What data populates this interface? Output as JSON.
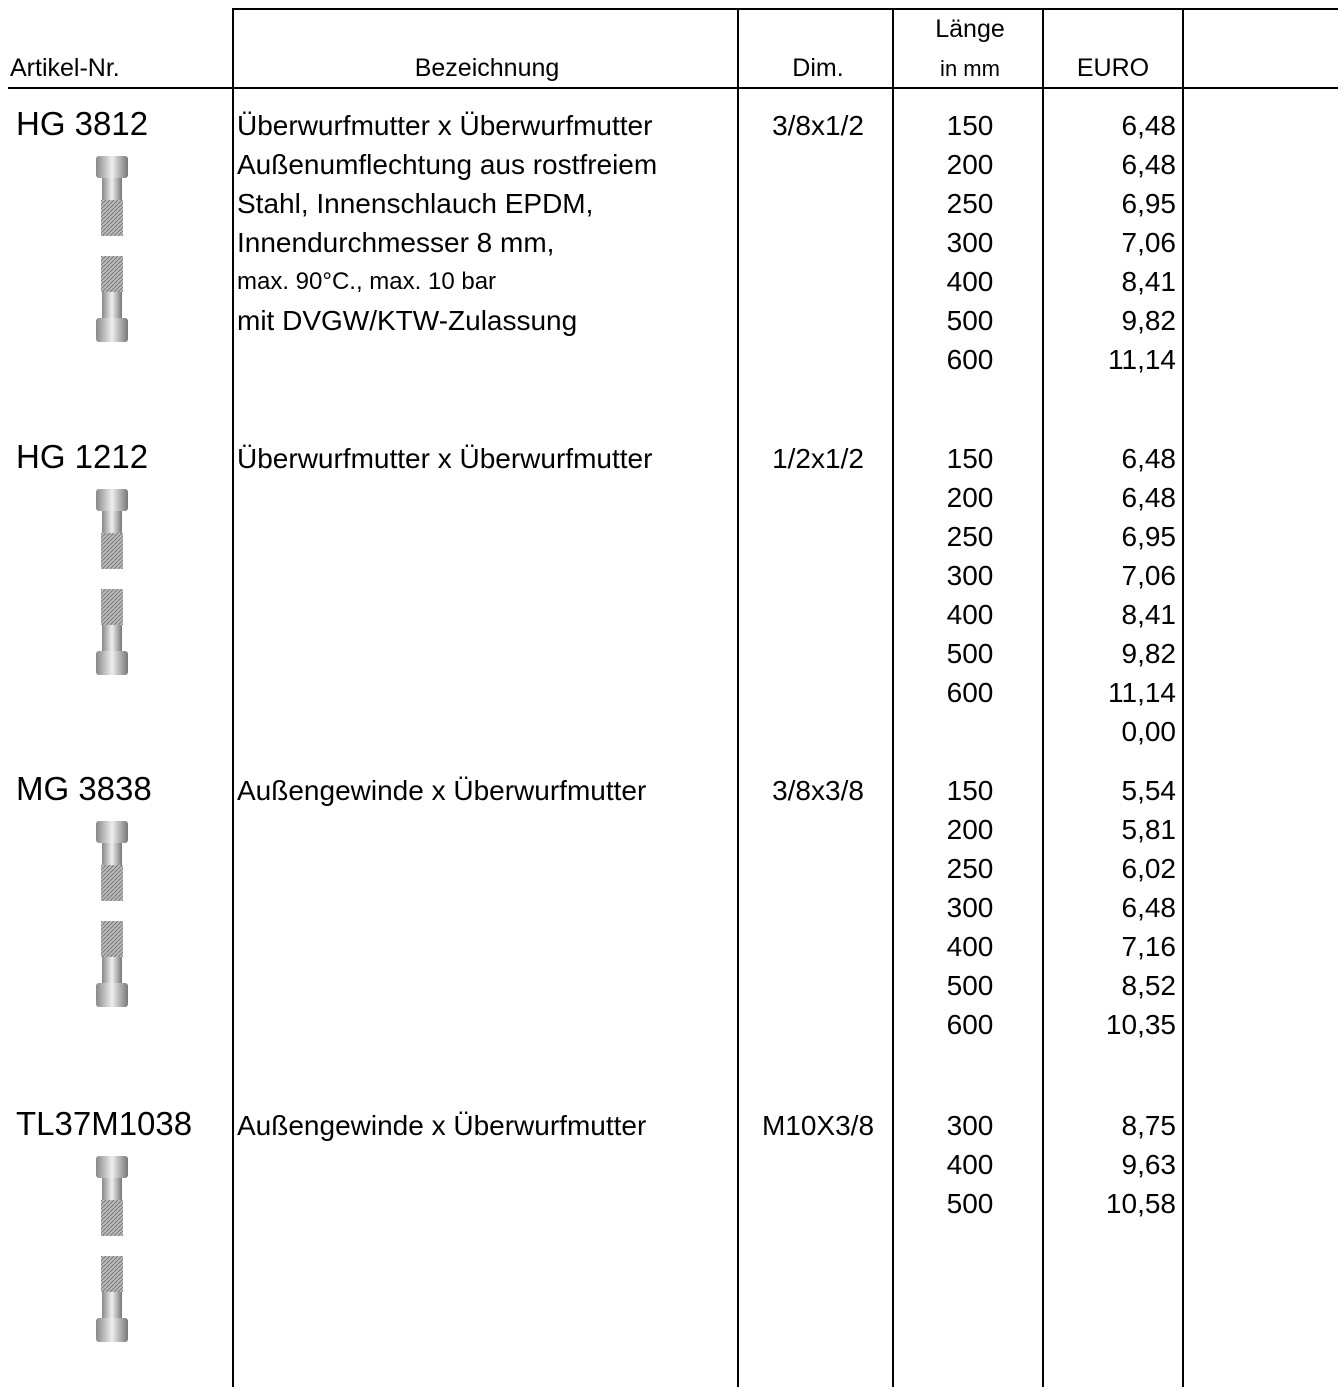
{
  "header": {
    "article": "Artikel-Nr.",
    "designation": "Bezeichnung",
    "dim": "Dim.",
    "length": [
      "Länge",
      "in mm"
    ],
    "price": "EURO"
  },
  "products": [
    {
      "id": "HG 3812",
      "description": [
        "Überwurfmutter x Überwurfmutter",
        "Außenumflechtung aus rostfreiem",
        "Stahl, Innenschlauch EPDM,",
        "Innendurchmesser 8 mm,",
        "max. 90°C., max. 10 bar",
        "mit DVGW/KTW-Zulassung"
      ],
      "dim": "3/8x1/2",
      "rows": [
        {
          "length": 150,
          "price": "6,48"
        },
        {
          "length": 200,
          "price": "6,48"
        },
        {
          "length": 250,
          "price": "6,95"
        },
        {
          "length": 300,
          "price": "7,06"
        },
        {
          "length": 400,
          "price": "8,41"
        },
        {
          "length": 500,
          "price": "9,82"
        },
        {
          "length": 600,
          "price": "11,14"
        }
      ]
    },
    {
      "id": "HG 1212",
      "description": [
        "Überwurfmutter x Überwurfmutter"
      ],
      "dim": "1/2x1/2",
      "rows": [
        {
          "length": 150,
          "price": "6,48"
        },
        {
          "length": 200,
          "price": "6,48"
        },
        {
          "length": 250,
          "price": "6,95"
        },
        {
          "length": 300,
          "price": "7,06"
        },
        {
          "length": 400,
          "price": "8,41"
        },
        {
          "length": 500,
          "price": "9,82"
        },
        {
          "length": 600,
          "price": "11,14"
        },
        {
          "price": "0,00"
        }
      ]
    },
    {
      "id": "MG 3838",
      "description": [
        "Außengewinde x Überwurfmutter"
      ],
      "dim": "3/8x3/8",
      "rows": [
        {
          "length": 150,
          "price": "5,54"
        },
        {
          "length": 200,
          "price": "5,81"
        },
        {
          "length": 250,
          "price": "6,02"
        },
        {
          "length": 300,
          "price": "6,48"
        },
        {
          "length": 400,
          "price": "7,16"
        },
        {
          "length": 500,
          "price": "8,52"
        },
        {
          "length": 600,
          "price": "10,35"
        }
      ]
    },
    {
      "id": "TL37M1038",
      "description": [
        "Außengewinde x Überwurfmutter"
      ],
      "dim": "M10X3/8",
      "rows": [
        {
          "length": 300,
          "price": "8,75"
        },
        {
          "length": 400,
          "price": "9,63"
        },
        {
          "length": 500,
          "price": "10,58"
        }
      ]
    }
  ]
}
